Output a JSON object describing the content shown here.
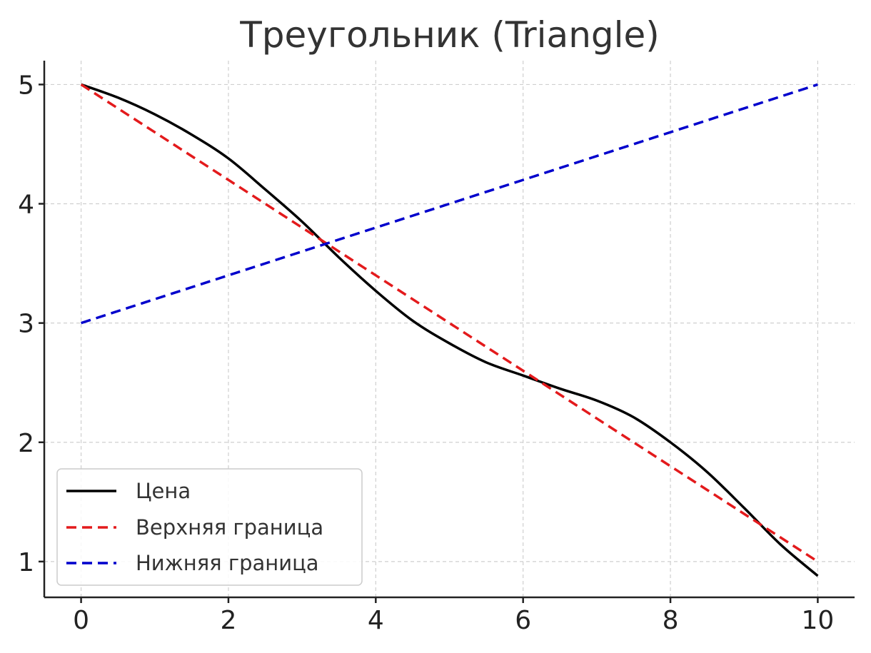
{
  "chart_data": {
    "type": "line",
    "title": "Треугольник (Triangle)",
    "xlabel": "",
    "ylabel": "",
    "xlim": [
      -0.5,
      10.5
    ],
    "ylim": [
      0.7,
      5.2
    ],
    "x_ticks": [
      0,
      2,
      4,
      6,
      8,
      10
    ],
    "y_ticks": [
      1,
      2,
      3,
      4,
      5
    ],
    "grid": true,
    "legend_position": "lower-left",
    "series": [
      {
        "name": "Цена",
        "color": "#000000",
        "style": "solid",
        "x": [
          0,
          0.5,
          1,
          1.5,
          2,
          2.5,
          3,
          3.5,
          4,
          4.5,
          5,
          5.5,
          6,
          6.5,
          7,
          7.5,
          8,
          8.5,
          9,
          9.5,
          10
        ],
        "y": [
          5.0,
          4.89,
          4.75,
          4.58,
          4.38,
          4.12,
          3.85,
          3.55,
          3.27,
          3.02,
          2.83,
          2.67,
          2.56,
          2.45,
          2.35,
          2.21,
          2.0,
          1.75,
          1.45,
          1.14,
          0.88
        ]
      },
      {
        "name": "Верхняя граница",
        "color": "#e31a1c",
        "style": "dashed",
        "x": [
          0,
          10
        ],
        "y": [
          5.0,
          1.0
        ]
      },
      {
        "name": "Нижняя граница",
        "color": "#0000cc",
        "style": "dashed",
        "x": [
          0,
          10
        ],
        "y": [
          3.0,
          5.0
        ]
      }
    ]
  }
}
